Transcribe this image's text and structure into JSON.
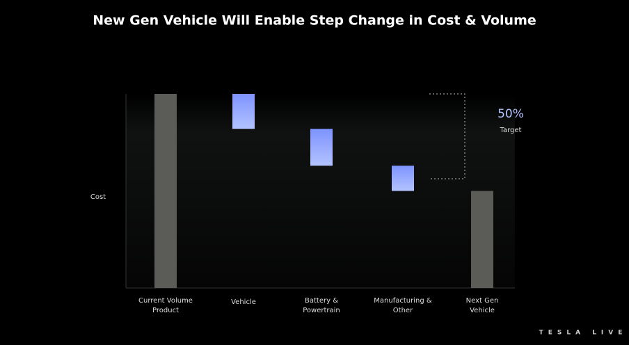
{
  "chart_data": {
    "type": "waterfall",
    "title": "New Gen Vehicle Will Enable Step Change in Cost & Volume",
    "ylabel": "Cost",
    "categories": [
      "Current Volume Product",
      "Vehicle",
      "Battery & Powertrain",
      "Manufacturing & Other",
      "Next Gen Vehicle"
    ],
    "values": [
      100,
      -18,
      -19,
      -13,
      50
    ],
    "color": "#5b5b57",
    "step_color": "#93a9ff",
    "ylim": [
      0,
      100
    ],
    "annotation": "50%",
    "annotation_label": "Target",
    "watermark": "TESLA LIVE"
  }
}
